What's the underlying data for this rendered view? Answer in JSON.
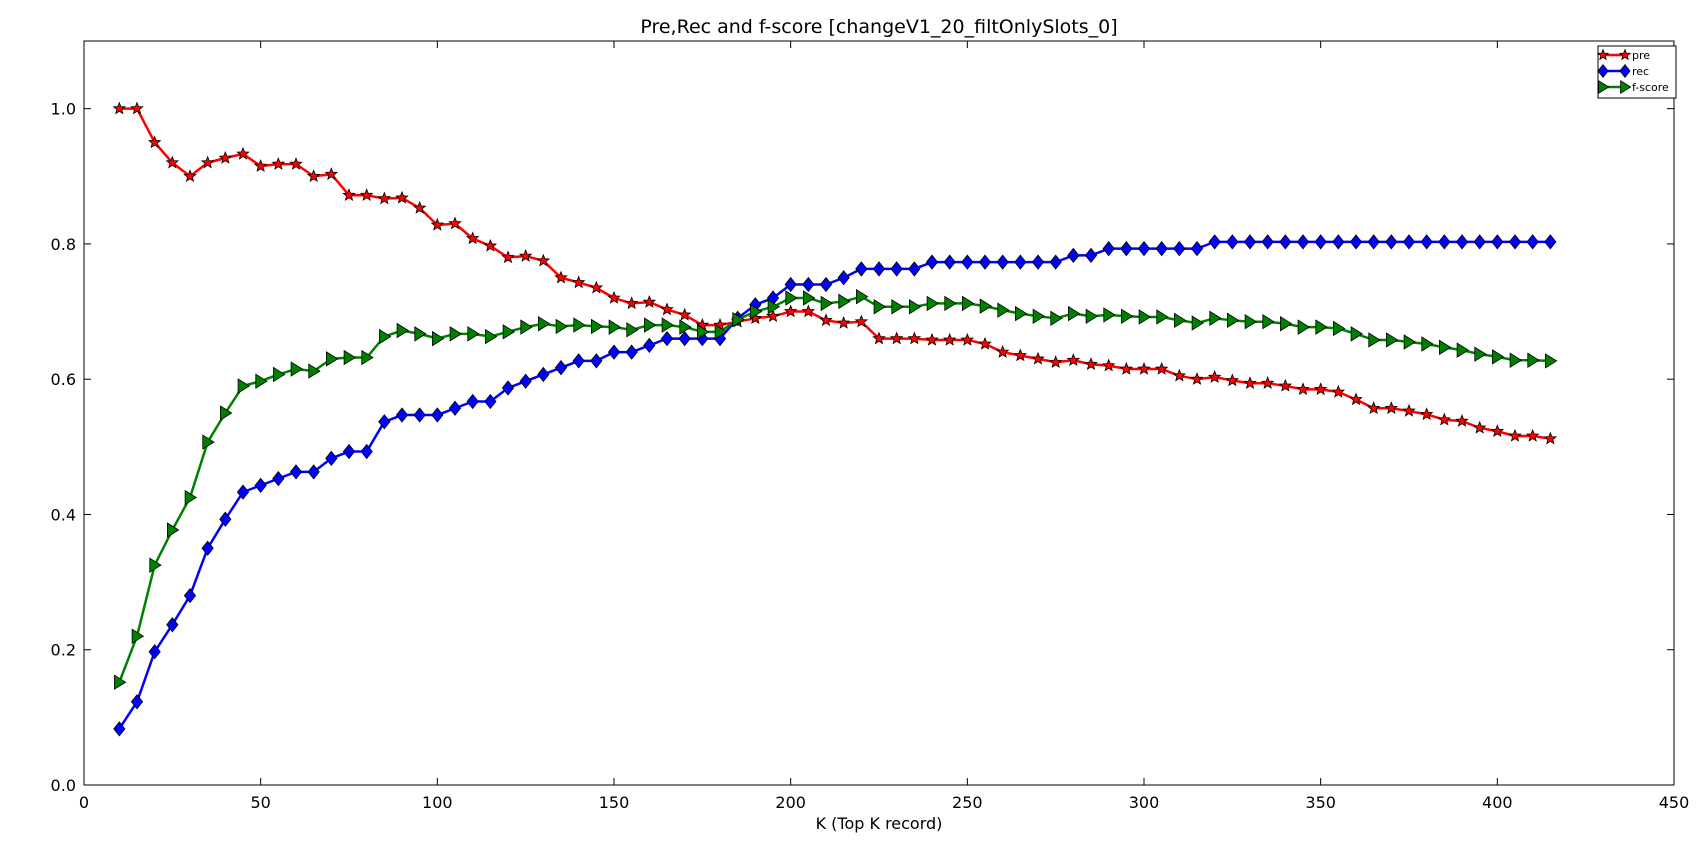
{
  "chart_data": {
    "type": "line",
    "title": "Pre,Rec and f-score [changeV1_20_filtOnlySlots_0]",
    "xlabel": "K (Top K record)",
    "ylabel": "",
    "xlim": [
      0,
      450
    ],
    "ylim": [
      0,
      1.1
    ],
    "xticks": [
      0,
      50,
      100,
      150,
      200,
      250,
      300,
      350,
      400,
      450
    ],
    "yticks": [
      0.0,
      0.2,
      0.4,
      0.6,
      0.8,
      1.0
    ],
    "xtick_labels": [
      "0",
      "50",
      "100",
      "150",
      "200",
      "250",
      "300",
      "350",
      "400",
      "450"
    ],
    "ytick_labels": [
      "0.0",
      "0.2",
      "0.4",
      "0.6",
      "0.8",
      "1.0"
    ],
    "grid": false,
    "legend_position": "top-right",
    "x": [
      10,
      15,
      20,
      25,
      30,
      35,
      40,
      45,
      50,
      55,
      60,
      65,
      70,
      75,
      80,
      85,
      90,
      95,
      100,
      105,
      110,
      115,
      120,
      125,
      130,
      135,
      140,
      145,
      150,
      155,
      160,
      165,
      170,
      175,
      180,
      185,
      190,
      195,
      200,
      205,
      210,
      215,
      220,
      225,
      230,
      235,
      240,
      245,
      250,
      255,
      260,
      265,
      270,
      275,
      280,
      285,
      290,
      295,
      300,
      305,
      310,
      315,
      320,
      325,
      330,
      335,
      340,
      345,
      350,
      355,
      360,
      365,
      370,
      375,
      380,
      385,
      390,
      395,
      400,
      405,
      410,
      415
    ],
    "series": [
      {
        "name": "pre",
        "color": "#ff0000",
        "marker": "star",
        "values": [
          1.0,
          1.0,
          0.95,
          0.92,
          0.9,
          0.92,
          0.927,
          0.933,
          0.915,
          0.918,
          0.918,
          0.9,
          0.903,
          0.872,
          0.872,
          0.867,
          0.868,
          0.853,
          0.828,
          0.83,
          0.808,
          0.797,
          0.78,
          0.782,
          0.775,
          0.75,
          0.743,
          0.735,
          0.72,
          0.712,
          0.714,
          0.703,
          0.695,
          0.68,
          0.68,
          0.685,
          0.69,
          0.693,
          0.7,
          0.7,
          0.687,
          0.683,
          0.685,
          0.66,
          0.66,
          0.66,
          0.658,
          0.658,
          0.658,
          0.652,
          0.64,
          0.635,
          0.63,
          0.625,
          0.628,
          0.622,
          0.62,
          0.615,
          0.615,
          0.615,
          0.605,
          0.6,
          0.603,
          0.598,
          0.594,
          0.594,
          0.59,
          0.585,
          0.585,
          0.581,
          0.57,
          0.557,
          0.557,
          0.553,
          0.548,
          0.54,
          0.538,
          0.528,
          0.523,
          0.516,
          0.516,
          0.512
        ]
      },
      {
        "name": "rec",
        "color": "#0000ff",
        "marker": "diamond",
        "values": [
          0.083,
          0.123,
          0.197,
          0.237,
          0.28,
          0.35,
          0.393,
          0.433,
          0.443,
          0.453,
          0.463,
          0.463,
          0.483,
          0.493,
          0.493,
          0.537,
          0.547,
          0.547,
          0.547,
          0.557,
          0.567,
          0.567,
          0.587,
          0.597,
          0.607,
          0.617,
          0.627,
          0.627,
          0.64,
          0.64,
          0.65,
          0.66,
          0.66,
          0.66,
          0.66,
          0.69,
          0.71,
          0.72,
          0.74,
          0.74,
          0.74,
          0.75,
          0.763,
          0.763,
          0.763,
          0.763,
          0.773,
          0.773,
          0.773,
          0.773,
          0.773,
          0.773,
          0.773,
          0.773,
          0.783,
          0.783,
          0.793,
          0.793,
          0.793,
          0.793,
          0.793,
          0.793,
          0.803,
          0.803,
          0.803,
          0.803,
          0.803,
          0.803,
          0.803,
          0.803,
          0.803,
          0.803,
          0.803,
          0.803,
          0.803,
          0.803,
          0.803,
          0.803,
          0.803,
          0.803,
          0.803,
          0.803
        ]
      },
      {
        "name": "f-score",
        "color": "#008000",
        "marker": "triangle-right",
        "values": [
          0.152,
          0.22,
          0.325,
          0.377,
          0.425,
          0.507,
          0.55,
          0.59,
          0.597,
          0.607,
          0.615,
          0.612,
          0.63,
          0.632,
          0.632,
          0.663,
          0.672,
          0.667,
          0.66,
          0.667,
          0.667,
          0.663,
          0.67,
          0.677,
          0.682,
          0.678,
          0.68,
          0.678,
          0.677,
          0.673,
          0.68,
          0.68,
          0.677,
          0.67,
          0.67,
          0.688,
          0.7,
          0.707,
          0.72,
          0.72,
          0.712,
          0.715,
          0.722,
          0.707,
          0.707,
          0.707,
          0.712,
          0.712,
          0.712,
          0.708,
          0.702,
          0.697,
          0.693,
          0.69,
          0.697,
          0.693,
          0.695,
          0.693,
          0.692,
          0.692,
          0.687,
          0.683,
          0.69,
          0.687,
          0.685,
          0.685,
          0.682,
          0.677,
          0.677,
          0.675,
          0.667,
          0.658,
          0.658,
          0.655,
          0.652,
          0.647,
          0.643,
          0.637,
          0.633,
          0.628,
          0.628,
          0.627
        ]
      }
    ]
  }
}
